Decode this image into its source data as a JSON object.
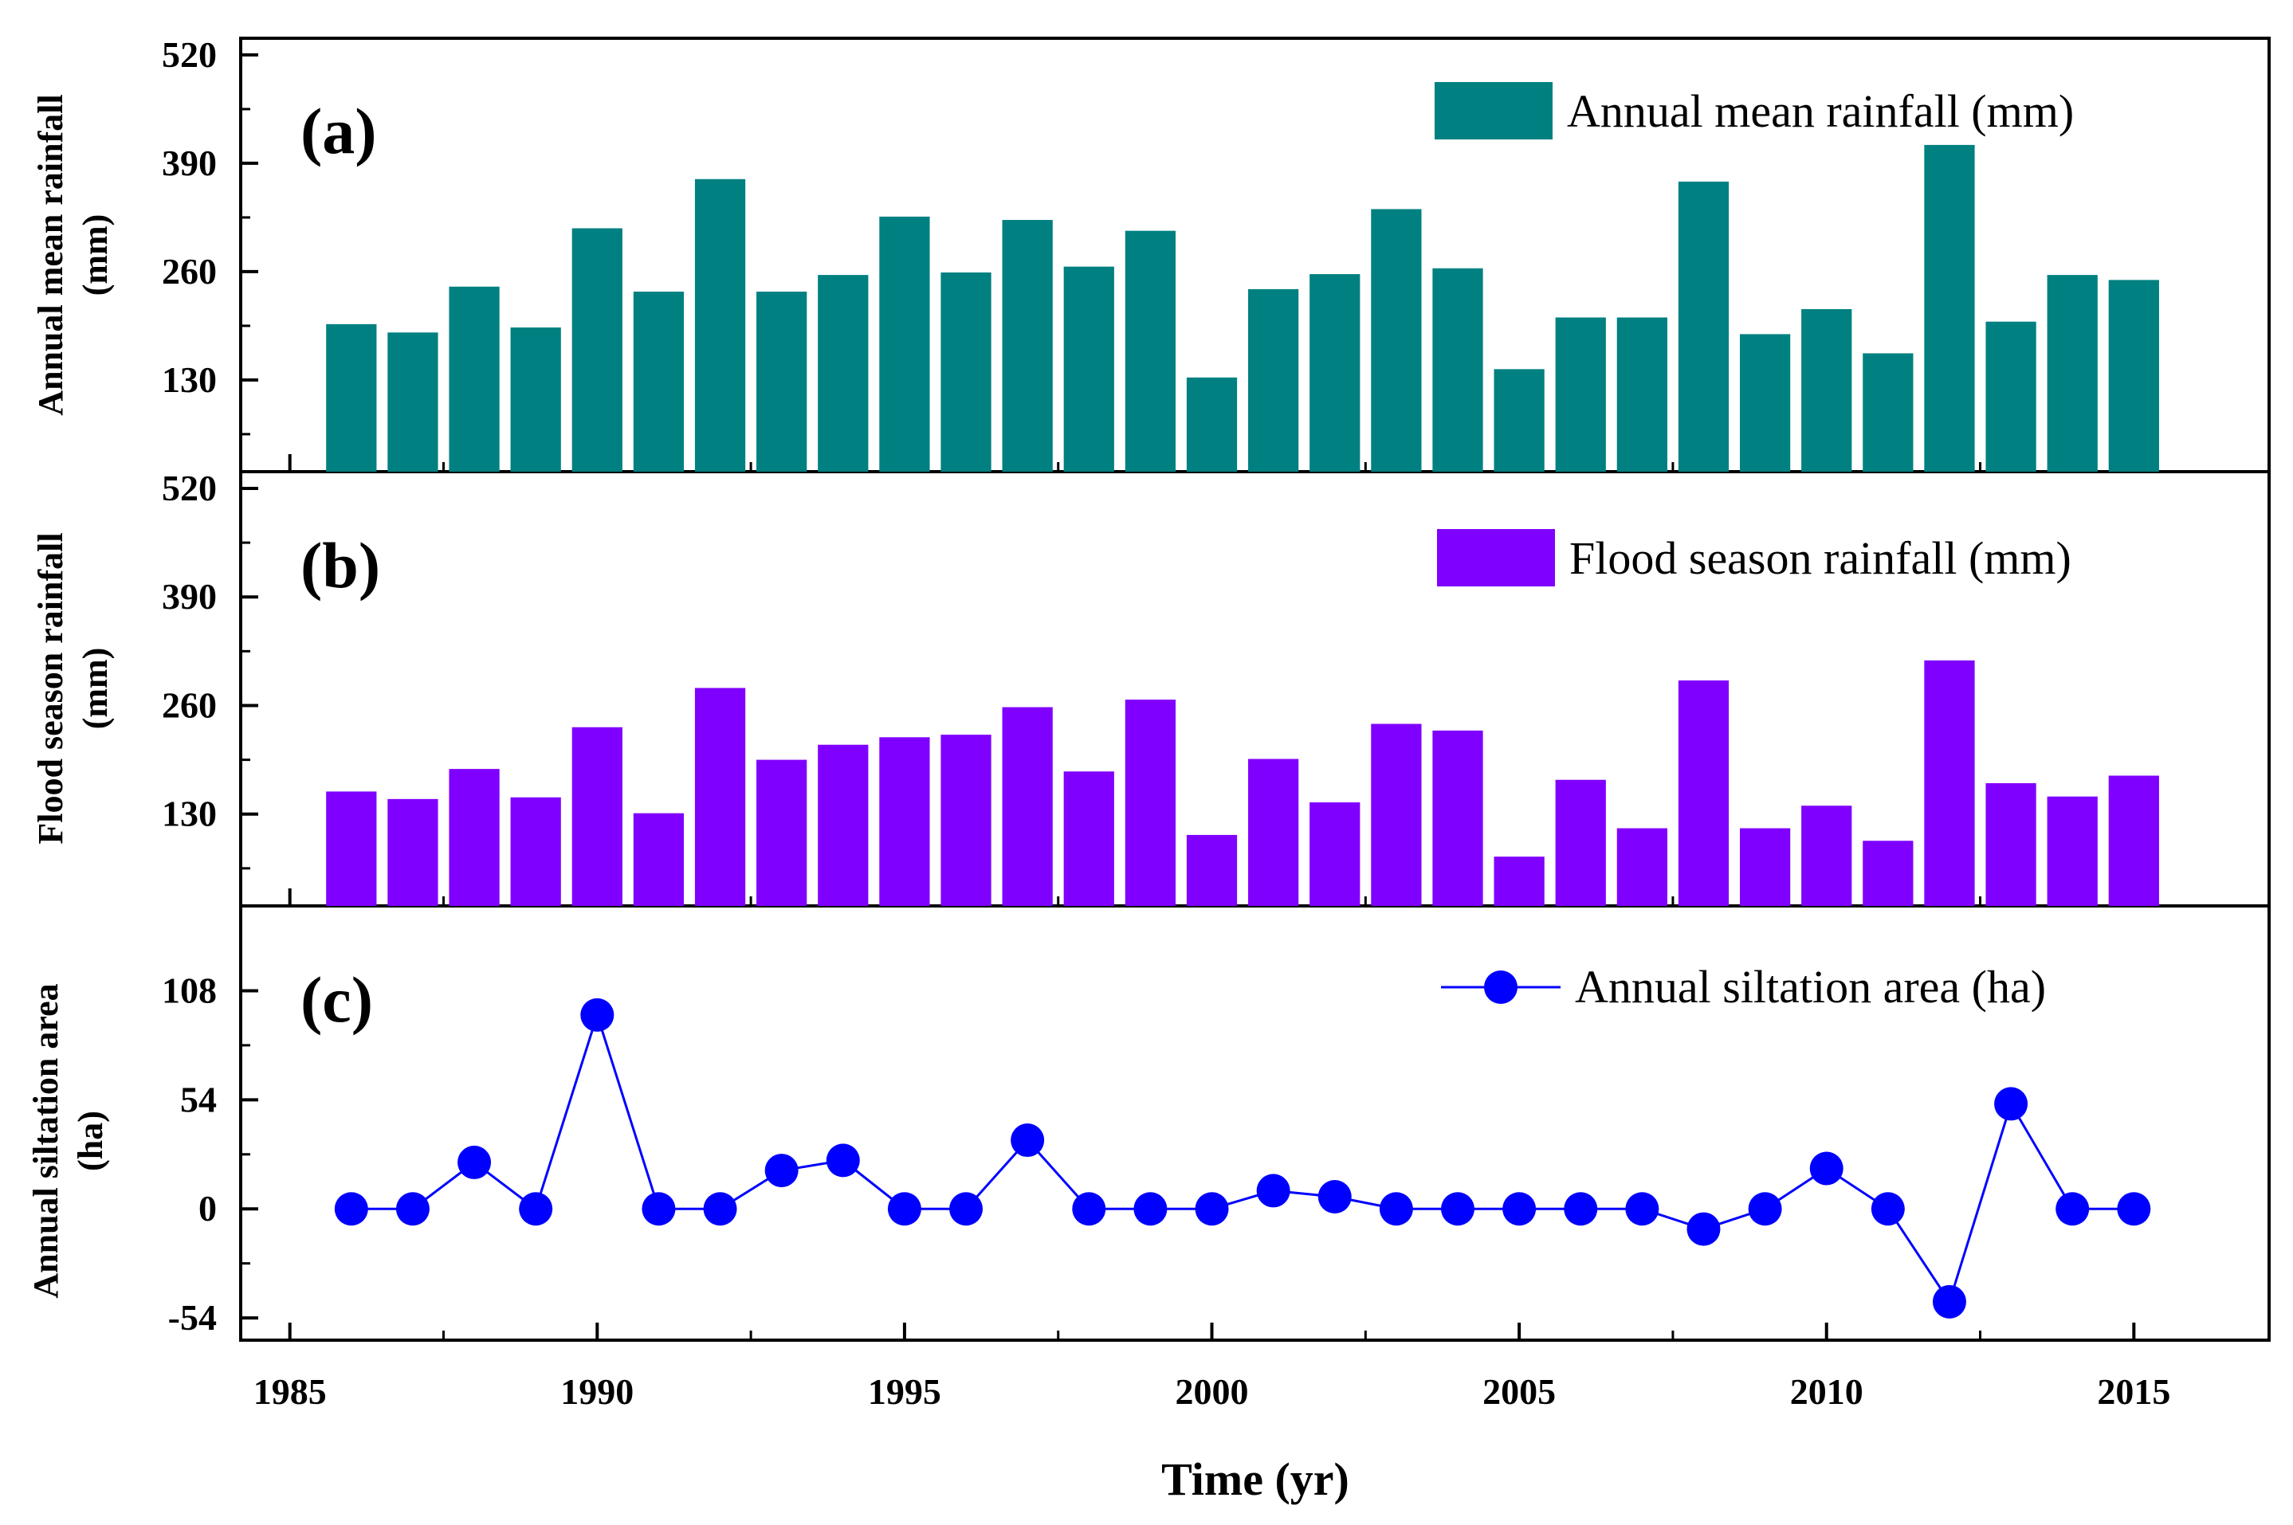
{
  "chart_data": [
    {
      "type": "bar",
      "panel_label": "(a)",
      "ylabel_lines": [
        "Annual mean rainfall",
        "(mm)"
      ],
      "legend": "Annual mean rainfall (mm)",
      "color": "#008080",
      "ylim": [
        20,
        540
      ],
      "yticks": [
        130,
        260,
        390,
        520
      ],
      "tick_labels": [
        "130",
        "260",
        "390",
        "520"
      ],
      "x": [
        1986,
        1987,
        1988,
        1989,
        1990,
        1991,
        1992,
        1993,
        1994,
        1995,
        1996,
        1997,
        1998,
        1999,
        2000,
        2001,
        2002,
        2003,
        2004,
        2005,
        2006,
        2007,
        2008,
        2009,
        2010,
        2011,
        2012,
        2013,
        2014,
        2015
      ],
      "values": [
        197,
        187,
        242,
        193,
        312,
        236,
        371,
        236,
        256,
        326,
        259,
        322,
        266,
        309,
        133,
        239,
        257,
        335,
        264,
        143,
        205,
        205,
        368,
        185,
        215,
        162,
        412,
        200,
        256,
        250
      ]
    },
    {
      "type": "bar",
      "panel_label": "(b)",
      "ylabel_lines": [
        "Flood season rainfall",
        "(mm)"
      ],
      "legend": "Flood season rainfall (mm)",
      "color": "#8000ff",
      "ylim": [
        20,
        540
      ],
      "yticks": [
        130,
        260,
        390,
        520
      ],
      "tick_labels": [
        "130",
        "260",
        "390",
        "520"
      ],
      "x": [
        1986,
        1987,
        1988,
        1989,
        1990,
        1991,
        1992,
        1993,
        1994,
        1995,
        1996,
        1997,
        1998,
        1999,
        2000,
        2001,
        2002,
        2003,
        2004,
        2005,
        2006,
        2007,
        2008,
        2009,
        2010,
        2011,
        2012,
        2013,
        2014,
        2015
      ],
      "values": [
        157,
        148,
        184,
        150,
        234,
        131,
        281,
        195,
        213,
        222,
        225,
        258,
        181,
        267,
        105,
        196,
        144,
        238,
        230,
        79,
        171,
        113,
        290,
        113,
        140,
        98,
        314,
        167,
        151,
        176
      ]
    },
    {
      "type": "line",
      "panel_label": "(c)",
      "ylabel_lines": [
        "Annual siltation area",
        "(ha)"
      ],
      "legend": "Annual siltation area (ha)",
      "color": "#0000ff",
      "ylim": [
        -65,
        150
      ],
      "yticks": [
        -54,
        0,
        54,
        108
      ],
      "tick_labels": [
        "-54",
        "0",
        "54",
        "108"
      ],
      "x": [
        1986,
        1987,
        1988,
        1989,
        1990,
        1991,
        1992,
        1993,
        1994,
        1995,
        1996,
        1997,
        1998,
        1999,
        2000,
        2001,
        2002,
        2003,
        2004,
        2005,
        2006,
        2007,
        2008,
        2009,
        2010,
        2011,
        2012,
        2013,
        2014,
        2015
      ],
      "values": [
        0,
        0,
        23,
        0,
        96,
        0,
        0,
        19,
        24,
        0,
        0,
        34,
        0,
        0,
        0,
        9,
        6,
        0,
        0,
        0,
        0,
        0,
        -10,
        0,
        20,
        0,
        -46,
        52,
        0,
        0
      ]
    }
  ],
  "x_axis": {
    "title": "Time (yr)",
    "xlim": [
      1984.2,
      1987.2
    ],
    "xlim_full": [
      1984.2,
      2017.2
    ],
    "ticks": [
      1985,
      1990,
      1995,
      2000,
      2005,
      2010,
      2015
    ],
    "tick_labels": [
      "1985",
      "1990",
      "1995",
      "2000",
      "2005",
      "2010",
      "2015"
    ]
  }
}
